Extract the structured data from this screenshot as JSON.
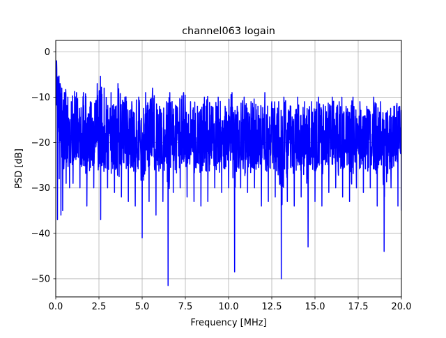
{
  "chart_data": {
    "type": "line",
    "title": "channel063 logain",
    "xlabel": "Frequency [MHz]",
    "ylabel": "PSD [dB]",
    "xlim": [
      0,
      20
    ],
    "ylim": [
      -54,
      2.5
    ],
    "xticks": [
      0,
      2.5,
      5,
      7.5,
      10,
      12.5,
      15,
      17.5,
      20
    ],
    "xtick_labels": [
      "0.0",
      "2.5",
      "5.0",
      "7.5",
      "10.0",
      "12.5",
      "15.0",
      "17.5",
      "20.0"
    ],
    "yticks": [
      0,
      -10,
      -20,
      -30,
      -40,
      -50
    ],
    "ytick_labels": [
      "0",
      "−10",
      "−20",
      "−30",
      "−40",
      "−50"
    ],
    "grid": true,
    "series": [
      {
        "color": "#0000ff",
        "x": [
          0.0,
          0.05,
          0.1,
          0.15,
          0.2,
          0.25,
          0.3,
          0.35,
          0.4,
          0.5,
          0.6,
          0.7,
          0.8,
          0.9,
          1.0,
          1.2,
          1.4,
          1.6,
          1.8,
          2.0,
          2.2,
          2.4,
          2.6,
          2.8,
          3.0,
          3.2,
          3.4,
          3.6,
          3.8,
          4.0,
          4.2,
          4.4,
          4.6,
          4.8,
          5.0,
          5.2,
          5.4,
          5.6,
          5.8,
          6.0,
          6.2,
          6.4,
          6.5,
          6.6,
          6.8,
          7.0,
          7.2,
          7.4,
          7.6,
          7.8,
          8.0,
          8.2,
          8.4,
          8.6,
          8.8,
          9.0,
          9.2,
          9.4,
          9.6,
          9.8,
          10.0,
          10.2,
          10.35,
          10.5,
          10.7,
          10.9,
          11.1,
          11.3,
          11.5,
          11.7,
          11.9,
          12.1,
          12.3,
          12.5,
          12.7,
          12.9,
          13.05,
          13.2,
          13.4,
          13.6,
          13.8,
          14.0,
          14.2,
          14.4,
          14.6,
          14.8,
          15.0,
          15.2,
          15.4,
          15.6,
          15.8,
          16.0,
          16.2,
          16.4,
          16.6,
          16.8,
          17.0,
          17.2,
          17.4,
          17.6,
          17.8,
          18.0,
          18.2,
          18.4,
          18.6,
          18.8,
          19.0,
          19.2,
          19.4,
          19.6,
          19.8,
          20.0
        ],
        "y_upper": [
          0.0,
          -2,
          -4,
          -6,
          -5,
          -7,
          -6,
          -8,
          -7,
          -9,
          -8,
          -10,
          -9,
          -11,
          -8,
          -9,
          -10,
          -9,
          -8,
          -11,
          -10,
          -7,
          -5,
          -8,
          -10,
          -9,
          -11,
          -7,
          -9,
          -10,
          -8,
          -11,
          -9,
          -10,
          -12,
          -9,
          -11,
          -8,
          -10,
          -12,
          -9,
          -11,
          -10,
          -9,
          -11,
          -12,
          -10,
          -9,
          -7,
          -11,
          -10,
          -12,
          -11,
          -10,
          -9,
          -12,
          -11,
          -10,
          -11,
          -12,
          -10,
          -9,
          -11,
          -12,
          -11,
          -10,
          -12,
          -11,
          -10,
          -12,
          -11,
          -9,
          -12,
          -11,
          -10,
          -11,
          -12,
          -10,
          -11,
          -12,
          -11,
          -10,
          -12,
          -11,
          -10,
          -11,
          -12,
          -10,
          -11,
          -12,
          -11,
          -10,
          -12,
          -11,
          -9,
          -12,
          -11,
          -10,
          -12,
          -11,
          -13,
          -12,
          -11,
          -10,
          -12,
          -11,
          -12,
          -13,
          -11,
          -12,
          -11,
          -13
        ],
        "y_mid": [
          -2,
          -8,
          -12,
          -15,
          -16,
          -17,
          -18,
          -18,
          -19,
          -19,
          -19,
          -19,
          -20,
          -20,
          -19,
          -20,
          -20,
          -19,
          -20,
          -20,
          -19,
          -20,
          -19,
          -20,
          -20,
          -19,
          -20,
          -20,
          -19,
          -20,
          -20,
          -19,
          -20,
          -20,
          -19,
          -20,
          -20,
          -19,
          -20,
          -20,
          -19,
          -20,
          -20,
          -19,
          -20,
          -20,
          -19,
          -20,
          -20,
          -19,
          -20,
          -20,
          -19,
          -20,
          -20,
          -19,
          -20,
          -20,
          -19,
          -20,
          -20,
          -19,
          -20,
          -20,
          -19,
          -20,
          -20,
          -19,
          -20,
          -20,
          -19,
          -20,
          -20,
          -19,
          -20,
          -20,
          -19,
          -20,
          -20,
          -19,
          -20,
          -20,
          -19,
          -20,
          -20,
          -19,
          -20,
          -20,
          -19,
          -20,
          -20,
          -19,
          -20,
          -20,
          -19,
          -20,
          -20,
          -19,
          -20,
          -20,
          -19,
          -20,
          -20,
          -19,
          -20,
          -20,
          -19,
          -20,
          -20,
          -19,
          -20,
          -20
        ],
        "y_lower": [
          -10,
          -25,
          -37,
          -30,
          -28,
          -33,
          -36,
          -30,
          -35,
          -31,
          -29,
          -33,
          -30,
          -32,
          -29,
          -31,
          -30,
          -33,
          -34,
          -31,
          -30,
          -33,
          -37,
          -32,
          -30,
          -34,
          -31,
          -38,
          -32,
          -30,
          -33,
          -31,
          -34,
          -30,
          -41,
          -32,
          -33,
          -30,
          -36,
          -31,
          -33,
          -34,
          -51.5,
          -33,
          -31,
          -34,
          -30,
          -33,
          -32,
          -31,
          -33,
          -30,
          -34,
          -31,
          -33,
          -32,
          -30,
          -33,
          -31,
          -34,
          -30,
          -33,
          -48.5,
          -32,
          -30,
          -34,
          -31,
          -33,
          -30,
          -32,
          -34,
          -31,
          -33,
          -30,
          -32,
          -34,
          -50,
          -43.5,
          -33,
          -31,
          -34,
          -30,
          -32,
          -34,
          -43,
          -31,
          -33,
          -30,
          -34,
          -32,
          -31,
          -33,
          -30,
          -34,
          -32,
          -31,
          -33,
          -44.5,
          -30,
          -34,
          -31,
          -33,
          -30,
          -32,
          -34,
          -31,
          -44,
          -33,
          -30,
          -32,
          -34,
          -35
        ]
      }
    ]
  }
}
